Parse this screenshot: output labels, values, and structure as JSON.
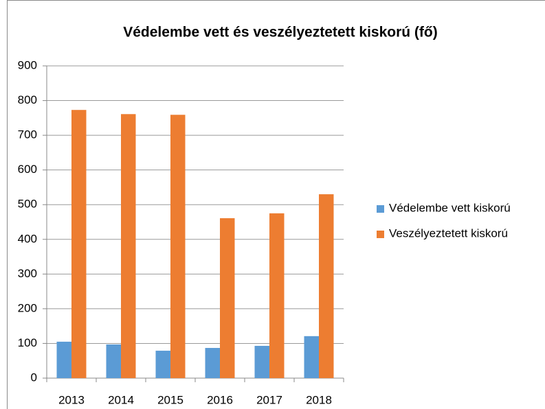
{
  "chart_data": {
    "type": "bar",
    "title": "Védelembe vett és veszélyeztetett kiskorú (fő)",
    "categories": [
      "2013",
      "2014",
      "2015",
      "2016",
      "2017",
      "2018"
    ],
    "series": [
      {
        "name": "Védelembe vett kiskorú",
        "color": "#5b9bd5",
        "values": [
          105,
          97,
          79,
          87,
          93,
          121
        ]
      },
      {
        "name": "Veszélyeztetett kiskorú",
        "color": "#ed7d31",
        "values": [
          773,
          761,
          759,
          461,
          475,
          530
        ]
      }
    ],
    "ylim": [
      0,
      900
    ],
    "yticks": [
      0,
      100,
      200,
      300,
      400,
      500,
      600,
      700,
      800,
      900
    ],
    "grid": true,
    "legend": "right"
  }
}
